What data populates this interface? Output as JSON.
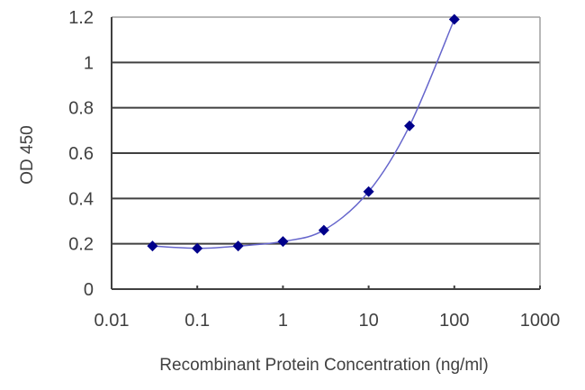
{
  "chart_data": {
    "type": "line",
    "title": "",
    "xlabel": "Recombinant Protein Concentration (ng/ml)",
    "ylabel": "OD 450",
    "xscale": "log",
    "xlim": [
      0.01,
      1000
    ],
    "ylim": [
      0,
      1.2
    ],
    "x_ticks": [
      "0.01",
      "0.1",
      "1",
      "10",
      "100",
      "1000"
    ],
    "y_ticks": [
      "0",
      "0.2",
      "0.4",
      "0.6",
      "0.8",
      "1",
      "1.2"
    ],
    "grid": "horizontal",
    "legend": null,
    "series": [
      {
        "name": "OD 450",
        "marker": "diamond",
        "color": "#00008B",
        "line_color": "#6666CC",
        "x": [
          0.03,
          0.1,
          0.3,
          1,
          3,
          10,
          30,
          100
        ],
        "y": [
          0.19,
          0.18,
          0.19,
          0.21,
          0.26,
          0.43,
          0.72,
          1.19
        ]
      }
    ]
  },
  "colors": {
    "marker": "#00008B",
    "curve": "#6666CC",
    "gridline": "#404040",
    "frame": "#a0a0a0",
    "text": "#404040"
  }
}
